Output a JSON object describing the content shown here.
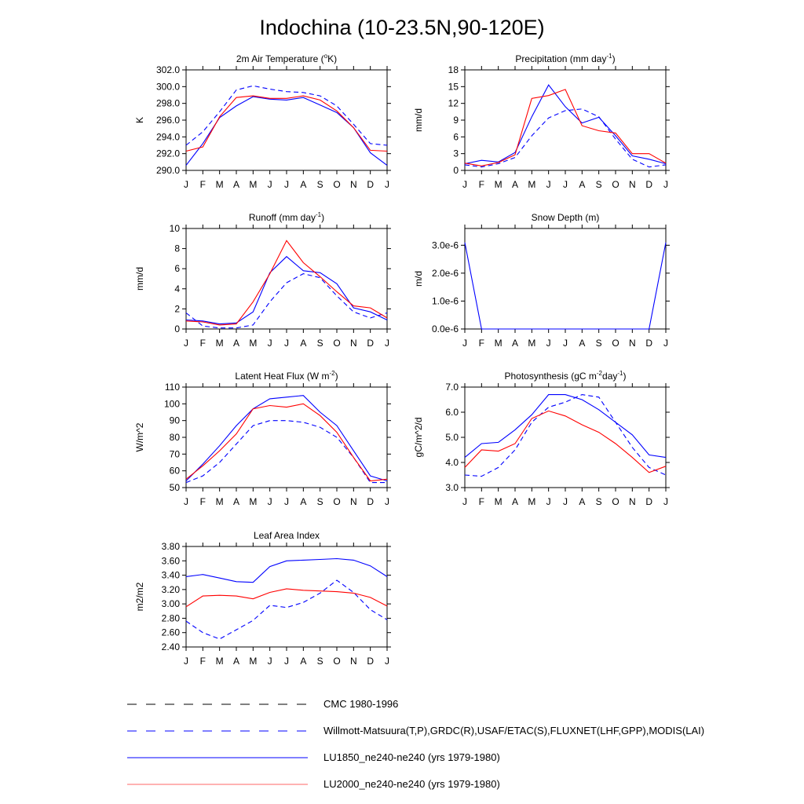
{
  "title": "Indochina (10-23.5N,90-120E)",
  "months": [
    "J",
    "F",
    "M",
    "A",
    "M",
    "J",
    "J",
    "A",
    "S",
    "O",
    "N",
    "D",
    "J"
  ],
  "colors": {
    "blue": "#0000ff",
    "red": "#ff0000",
    "black": "#000000"
  },
  "legend": [
    {
      "label": "CMC 1980-1996",
      "color": "#000000",
      "style": "dashed"
    },
    {
      "label": "Willmott-Matsuura(T,P),GRDC(R),USAF/ETAC(S),FLUXNET(LHF,GPP),MODIS(LAI)",
      "color": "#0000ff",
      "style": "dashed"
    },
    {
      "label": "LU1850_ne240-ne240 (yrs 1979-1980)",
      "color": "#0000ff",
      "style": "solid"
    },
    {
      "label": "LU2000_ne240-ne240 (yrs 1979-1980)",
      "color": "#ff0000",
      "style": "solid"
    }
  ],
  "chart_data": [
    {
      "type": "line",
      "title_parts": [
        "2m Air Temperature (",
        "o",
        "K)"
      ],
      "ylabel": "K",
      "ylim": [
        290,
        302
      ],
      "yticks": [
        290,
        292,
        294,
        296,
        298,
        300,
        302
      ],
      "yticklabels": [
        "290.0",
        "292.0",
        "294.0",
        "296.0",
        "298.0",
        "300.0",
        "302.0"
      ],
      "x": [
        "J",
        "F",
        "M",
        "A",
        "M",
        "J",
        "J",
        "A",
        "S",
        "O",
        "N",
        "D",
        "J"
      ],
      "series": [
        {
          "color": "#0000ff",
          "dash": true,
          "values": [
            293.0,
            294.6,
            297.0,
            299.6,
            300.1,
            299.7,
            299.4,
            299.3,
            298.9,
            297.7,
            295.5,
            293.2,
            293.0
          ]
        },
        {
          "color": "#0000ff",
          "dash": false,
          "values": [
            290.6,
            293.2,
            296.3,
            297.7,
            298.8,
            298.5,
            298.4,
            298.7,
            297.8,
            296.9,
            295.1,
            292.1,
            290.6
          ]
        },
        {
          "color": "#ff0000",
          "dash": false,
          "values": [
            292.3,
            292.8,
            296.4,
            298.7,
            298.9,
            298.6,
            298.6,
            298.9,
            298.4,
            297.1,
            295.1,
            292.4,
            292.3
          ]
        }
      ]
    },
    {
      "type": "line",
      "title_parts": [
        "Precipitation (mm day",
        "-1",
        ")"
      ],
      "ylabel": "mm/d",
      "ylim": [
        0,
        18
      ],
      "yticks": [
        0,
        3,
        6,
        9,
        12,
        15,
        18
      ],
      "yticklabels": [
        "0",
        "3",
        "6",
        "9",
        "12",
        "15",
        "18"
      ],
      "x": [
        "J",
        "F",
        "M",
        "A",
        "M",
        "J",
        "J",
        "A",
        "S",
        "O",
        "N",
        "D",
        "J"
      ],
      "series": [
        {
          "color": "#0000ff",
          "dash": true,
          "values": [
            1.0,
            0.6,
            1.2,
            2.3,
            6.2,
            9.4,
            10.7,
            11.0,
            9.6,
            5.6,
            2.0,
            0.6,
            1.0
          ]
        },
        {
          "color": "#0000ff",
          "dash": false,
          "values": [
            1.2,
            1.8,
            1.5,
            3.2,
            9.6,
            15.3,
            11.4,
            8.5,
            9.5,
            6.2,
            2.6,
            2.0,
            1.2
          ]
        },
        {
          "color": "#ff0000",
          "dash": false,
          "values": [
            1.3,
            0.8,
            1.4,
            2.8,
            12.9,
            13.4,
            14.5,
            8.0,
            7.1,
            6.7,
            3.0,
            3.0,
            1.3
          ]
        }
      ]
    },
    {
      "type": "line",
      "title_parts": [
        "Runoff (mm day",
        "-1",
        ")"
      ],
      "ylabel": "mm/d",
      "ylim": [
        0,
        10
      ],
      "yticks": [
        0,
        2,
        4,
        6,
        8,
        10
      ],
      "yticklabels": [
        "0",
        "2",
        "4",
        "6",
        "8",
        "10"
      ],
      "x": [
        "J",
        "F",
        "M",
        "A",
        "M",
        "J",
        "J",
        "A",
        "S",
        "O",
        "N",
        "D",
        "J"
      ],
      "series": [
        {
          "color": "#0000ff",
          "dash": true,
          "values": [
            1.6,
            0.3,
            0.1,
            0.1,
            0.4,
            2.7,
            4.6,
            5.5,
            5.1,
            3.3,
            1.7,
            1.1,
            1.6
          ]
        },
        {
          "color": "#0000ff",
          "dash": false,
          "values": [
            0.9,
            0.8,
            0.5,
            0.6,
            1.7,
            5.6,
            7.2,
            5.8,
            5.6,
            4.5,
            2.1,
            1.7,
            0.9
          ]
        },
        {
          "color": "#ff0000",
          "dash": false,
          "values": [
            0.8,
            0.7,
            0.4,
            0.5,
            2.7,
            5.5,
            8.8,
            6.6,
            5.2,
            3.7,
            2.3,
            2.1,
            1.1
          ]
        }
      ]
    },
    {
      "type": "line",
      "title_parts": [
        "Snow Depth (m)"
      ],
      "ylabel": "m/d",
      "ylim": [
        0,
        3.6e-06
      ],
      "yticks": [
        0,
        1e-06,
        2e-06,
        3e-06
      ],
      "yticklabels": [
        "0.0e-6",
        "1.0e-6",
        "2.0e-6",
        "3.0e-6"
      ],
      "x": [
        "J",
        "F",
        "M",
        "A",
        "M",
        "J",
        "J",
        "A",
        "S",
        "O",
        "N",
        "D",
        "J"
      ],
      "series": [
        {
          "color": "#000000",
          "dash": true,
          "values": [
            0,
            0,
            0,
            0,
            0,
            0,
            0,
            0,
            0,
            0,
            0,
            0,
            0
          ]
        },
        {
          "color": "#0000ff",
          "dash": false,
          "values": [
            3.1e-06,
            0,
            0,
            0,
            0,
            0,
            0,
            0,
            0,
            0,
            0,
            0,
            3.1e-06
          ]
        }
      ]
    },
    {
      "type": "line",
      "title_parts": [
        "Latent Heat Flux (W m",
        "-2",
        ")"
      ],
      "ylabel": "W/m^2",
      "ylim": [
        50,
        110
      ],
      "yticks": [
        50,
        60,
        70,
        80,
        90,
        100,
        110
      ],
      "yticklabels": [
        "50",
        "60",
        "70",
        "80",
        "90",
        "100",
        "110"
      ],
      "x": [
        "J",
        "F",
        "M",
        "A",
        "M",
        "J",
        "J",
        "A",
        "S",
        "O",
        "N",
        "D",
        "J"
      ],
      "series": [
        {
          "color": "#0000ff",
          "dash": true,
          "values": [
            53,
            57,
            65,
            76,
            87,
            90,
            90,
            89,
            86,
            80,
            68,
            53,
            53
          ]
        },
        {
          "color": "#0000ff",
          "dash": false,
          "values": [
            54,
            64,
            75,
            87,
            97,
            103,
            104,
            105,
            95,
            87,
            72,
            57,
            54
          ]
        },
        {
          "color": "#ff0000",
          "dash": false,
          "values": [
            55,
            63,
            72,
            82,
            97,
            99,
            98,
            100,
            93,
            83,
            68,
            54,
            55
          ]
        }
      ]
    },
    {
      "type": "line",
      "title_parts": [
        "Photosynthesis (gC m",
        "-2",
        "day",
        "-1",
        ")"
      ],
      "ylabel": "gC/m^2/d",
      "ylim": [
        3.0,
        7.0
      ],
      "yticks": [
        3,
        4,
        5,
        6,
        7
      ],
      "yticklabels": [
        "3.0",
        "4.0",
        "5.0",
        "6.0",
        "7.0"
      ],
      "x": [
        "J",
        "F",
        "M",
        "A",
        "M",
        "J",
        "J",
        "A",
        "S",
        "O",
        "N",
        "D",
        "J"
      ],
      "series": [
        {
          "color": "#0000ff",
          "dash": true,
          "values": [
            3.5,
            3.45,
            3.8,
            4.5,
            5.6,
            6.2,
            6.4,
            6.7,
            6.6,
            5.6,
            4.6,
            3.8,
            3.5
          ]
        },
        {
          "color": "#0000ff",
          "dash": false,
          "values": [
            4.2,
            4.75,
            4.8,
            5.3,
            5.9,
            6.7,
            6.7,
            6.5,
            6.1,
            5.6,
            5.1,
            4.3,
            4.2
          ]
        },
        {
          "color": "#ff0000",
          "dash": false,
          "values": [
            3.8,
            4.5,
            4.45,
            4.75,
            5.75,
            6.05,
            5.85,
            5.5,
            5.2,
            4.75,
            4.2,
            3.6,
            3.85
          ]
        }
      ]
    },
    {
      "type": "line",
      "title_parts": [
        "Leaf Area Index"
      ],
      "ylabel": "m2/m2",
      "ylim": [
        2.4,
        3.8
      ],
      "yticks": [
        2.4,
        2.6,
        2.8,
        3.0,
        3.2,
        3.4,
        3.6,
        3.8
      ],
      "yticklabels": [
        "2.40",
        "2.60",
        "2.80",
        "3.00",
        "3.20",
        "3.40",
        "3.60",
        "3.80"
      ],
      "x": [
        "J",
        "F",
        "M",
        "A",
        "M",
        "J",
        "J",
        "A",
        "S",
        "O",
        "N",
        "D",
        "J"
      ],
      "series": [
        {
          "color": "#0000ff",
          "dash": true,
          "values": [
            2.76,
            2.6,
            2.51,
            2.64,
            2.77,
            2.98,
            2.95,
            3.02,
            3.15,
            3.33,
            3.16,
            2.92,
            2.78
          ]
        },
        {
          "color": "#0000ff",
          "dash": false,
          "values": [
            3.38,
            3.41,
            3.36,
            3.31,
            3.3,
            3.52,
            3.6,
            3.61,
            3.62,
            3.63,
            3.61,
            3.53,
            3.38
          ]
        },
        {
          "color": "#ff0000",
          "dash": false,
          "values": [
            2.96,
            3.11,
            3.12,
            3.11,
            3.07,
            3.16,
            3.21,
            3.19,
            3.18,
            3.17,
            3.15,
            3.09,
            2.97
          ]
        }
      ]
    }
  ]
}
